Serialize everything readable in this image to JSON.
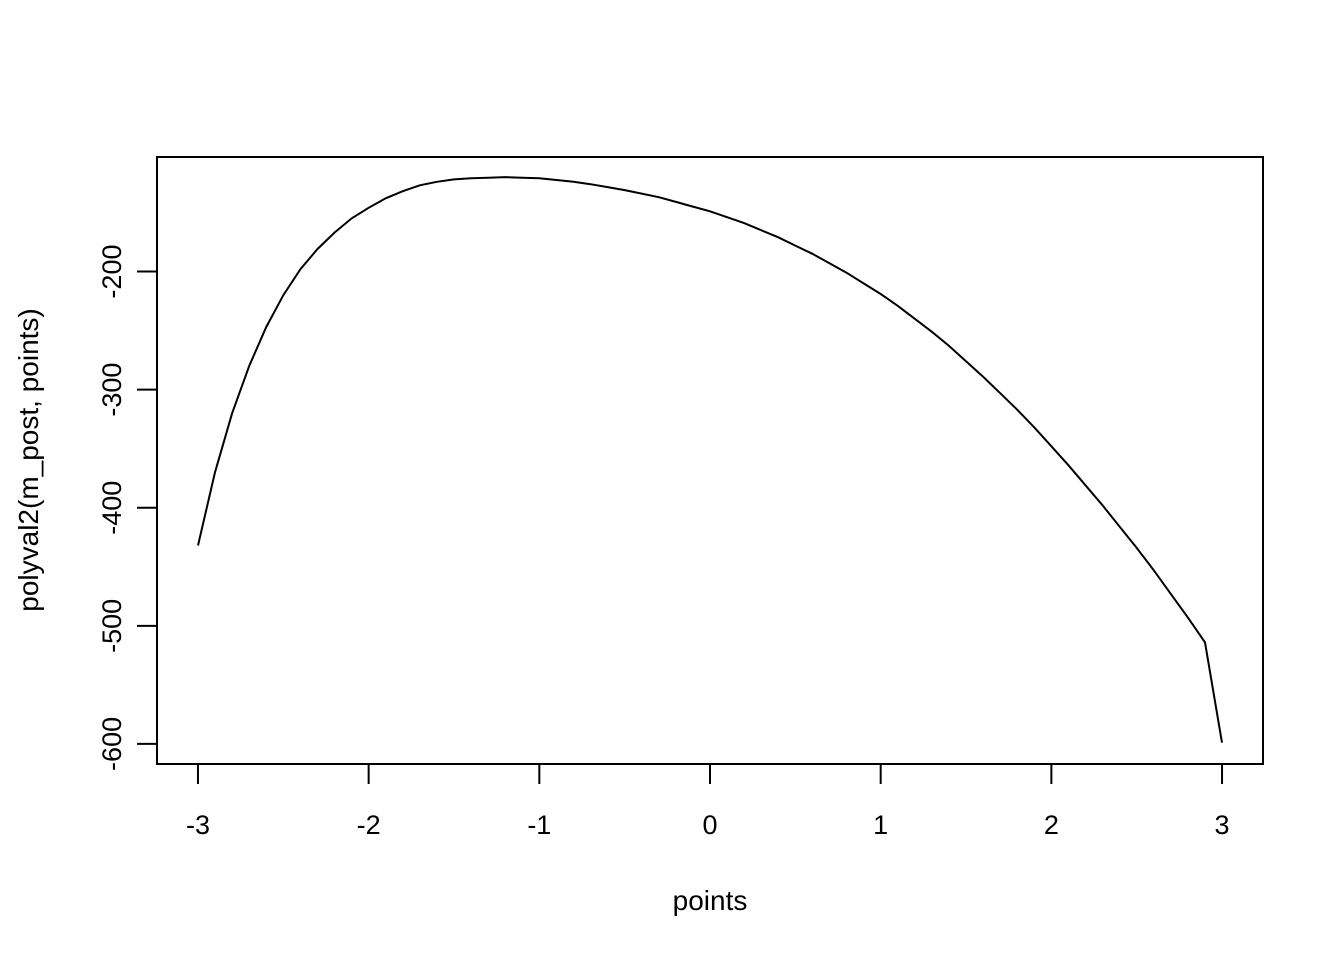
{
  "chart_data": {
    "type": "line",
    "title": "",
    "xlabel": "points",
    "ylabel": "polyval2(m_post, points)",
    "xlim": [
      -3.24,
      3.24
    ],
    "ylim": [
      -617,
      -103
    ],
    "xticks": [
      -3,
      -2,
      -1,
      0,
      1,
      2,
      3
    ],
    "yticks": [
      -200,
      -300,
      -400,
      -500,
      -600
    ],
    "grid": false,
    "legend": "none",
    "line_color": "#000000",
    "series": [
      {
        "x": [
          -3.0,
          -2.9,
          -2.8,
          -2.7,
          -2.6,
          -2.5,
          -2.4,
          -2.3,
          -2.2,
          -2.1,
          -2.0,
          -1.9,
          -1.8,
          -1.7,
          -1.6,
          -1.5,
          -1.4,
          -1.3,
          -1.2,
          -1.1,
          -1.0,
          -0.9,
          -0.8,
          -0.7,
          -0.6,
          -0.5,
          -0.4,
          -0.3,
          -0.2,
          -0.1,
          0.0,
          0.1,
          0.2,
          0.3,
          0.4,
          0.5,
          0.6,
          0.7,
          0.8,
          0.9,
          1.0,
          1.1,
          1.2,
          1.3,
          1.4,
          1.5,
          1.6,
          1.7,
          1.8,
          1.9,
          2.0,
          2.1,
          2.2,
          2.3,
          2.4,
          2.5,
          2.6,
          2.7,
          2.8,
          2.9,
          3.0
        ],
        "y": [
          -432,
          -370,
          -320,
          -280,
          -247,
          -220,
          -198,
          -181,
          -167,
          -155,
          -146,
          -138,
          -132,
          -127,
          -124,
          -122,
          -121,
          -120.5,
          -120,
          -120.5,
          -121,
          -122.5,
          -124,
          -126,
          -128.5,
          -131,
          -134,
          -137,
          -141,
          -145,
          -149,
          -154,
          -159,
          -165,
          -171,
          -178,
          -185,
          -193,
          -201,
          -210,
          -219,
          -229,
          -240,
          -251,
          -263,
          -276,
          -289,
          -303,
          -317,
          -332,
          -348,
          -364,
          -381,
          -398,
          -416,
          -434,
          -453,
          -473,
          -493,
          -514,
          -599
        ]
      }
    ]
  }
}
